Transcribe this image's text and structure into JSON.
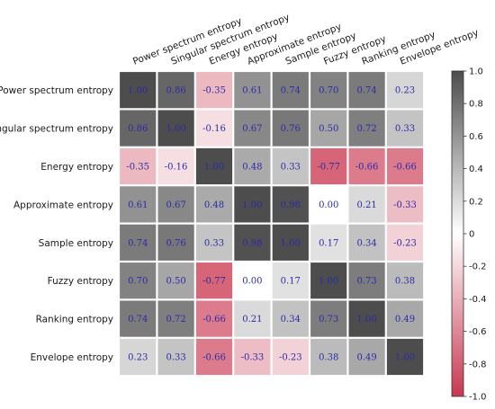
{
  "chart_data": {
    "type": "heatmap",
    "labels": [
      "Power spectrum entropy",
      "Singular spectrum entropy",
      "Energy entropy",
      "Approximate entropy",
      "Sample entropy",
      "Fuzzy entropy",
      "Ranking entropy",
      "Envelope entropy"
    ],
    "values": [
      [
        1.0,
        0.86,
        -0.35,
        0.61,
        0.74,
        0.7,
        0.74,
        0.23
      ],
      [
        0.86,
        1.0,
        -0.16,
        0.67,
        0.76,
        0.5,
        0.72,
        0.33
      ],
      [
        -0.35,
        -0.16,
        1.0,
        0.48,
        0.33,
        -0.77,
        -0.66,
        -0.66
      ],
      [
        0.61,
        0.67,
        0.48,
        1.0,
        0.98,
        0.0,
        0.21,
        -0.33
      ],
      [
        0.74,
        0.76,
        0.33,
        0.98,
        1.0,
        0.17,
        0.34,
        -0.23
      ],
      [
        0.7,
        0.5,
        -0.77,
        0.0,
        0.17,
        1.0,
        0.73,
        0.38
      ],
      [
        0.74,
        0.72,
        -0.66,
        0.21,
        0.34,
        0.73,
        1.0,
        0.49
      ],
      [
        0.23,
        0.33,
        -0.66,
        -0.33,
        -0.23,
        0.38,
        0.49,
        1.0
      ]
    ],
    "value_format": "2 decimals",
    "value_label_color": "#2a2aa8",
    "colorbar": {
      "range": [
        -1.0,
        1.0
      ],
      "ticks": [
        "-1.0",
        "-0.8",
        "-0.6",
        "-0.4",
        "-0.2",
        "0",
        "0.2",
        "0.4",
        "0.6",
        "0.8",
        "1.0"
      ],
      "colors": {
        "negative": "#c8374f",
        "zero": "#ffffff",
        "positive": "#4d4d4d"
      }
    },
    "title": "",
    "xlabel": "",
    "ylabel": ""
  }
}
